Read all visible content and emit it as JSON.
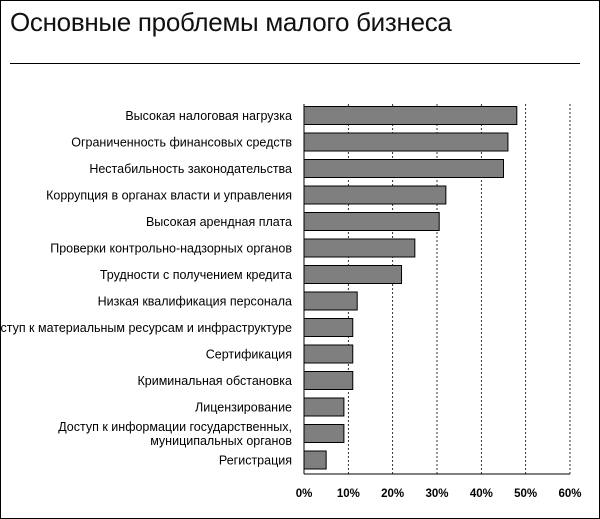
{
  "chart_data": {
    "type": "bar",
    "orientation": "horizontal",
    "title": "Основные проблемы малого бизнеса",
    "xlabel": "",
    "ylabel": "",
    "xlim": [
      0,
      60
    ],
    "grid": true,
    "bar_color": "#7f7f7f",
    "categories": [
      "Высокая налоговая нагрузка",
      "Ограниченность финансовых средств",
      "Нестабильность законодательства",
      "Коррупция в органах власти и управления",
      "Высокая арендная плата",
      "Проверки контрольно-надзорных органов",
      "Трудности с получением кредита",
      "Низкая квалификация персонала",
      "Доступ к материальным ресурсам и инфраструктуре",
      "Сертификация",
      "Криминальная обстановка",
      "Лицензирование",
      "Доступ к информации государственных, муниципальных органов",
      "Регистрация"
    ],
    "label_lines": [
      [
        "Высокая налоговая нагрузка"
      ],
      [
        "Ограниченность финансовых средств"
      ],
      [
        "Нестабильность законодательства"
      ],
      [
        "Коррупция в органах власти и управления"
      ],
      [
        "Высокая арендная плата"
      ],
      [
        "Проверки контрольно-надзорных органов"
      ],
      [
        "Трудности с получением кредита"
      ],
      [
        "Низкая квалификация персонала"
      ],
      [
        "Доступ к материальным ресурсам и инфраструктуре"
      ],
      [
        "Сертификация"
      ],
      [
        "Криминальная обстановка"
      ],
      [
        "Лицензирование"
      ],
      [
        "Доступ к информации государственных,",
        "муниципальных органов"
      ],
      [
        "Регистрация"
      ]
    ],
    "values": [
      48,
      46,
      45,
      32,
      30.5,
      25,
      22,
      12,
      11,
      11,
      11,
      9,
      9,
      5
    ],
    "ticks": [
      "0%",
      "10%",
      "20%",
      "30%",
      "40%",
      "50%",
      "60%"
    ]
  }
}
